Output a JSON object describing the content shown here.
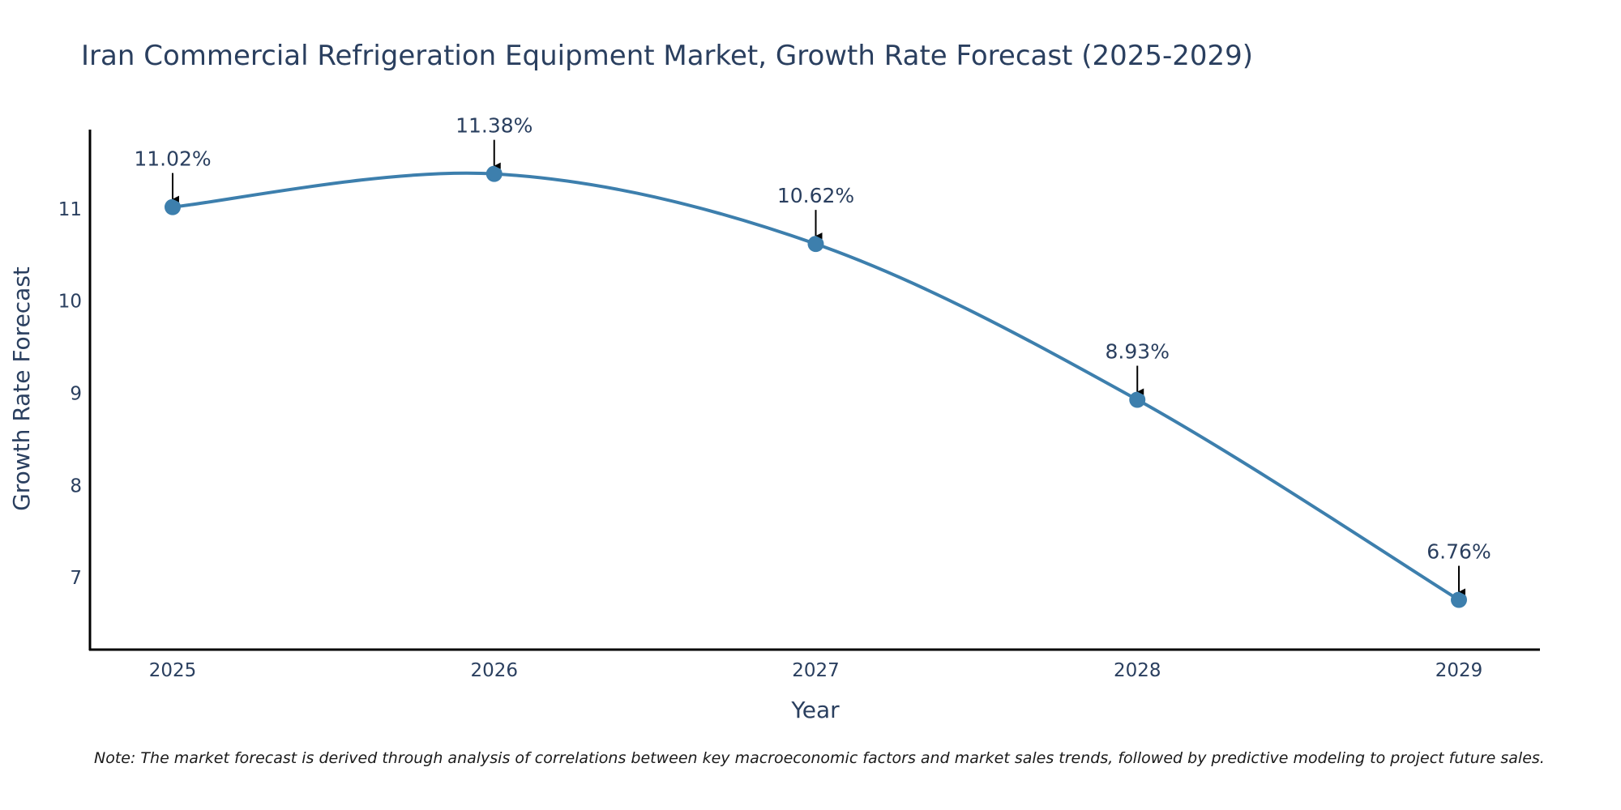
{
  "chart_data": {
    "type": "line",
    "title": "Iran Commercial Refrigeration Equipment Market, Growth Rate Forecast (2025-2029)",
    "xlabel": "Year",
    "ylabel": "Growth Rate Forecast",
    "categories": [
      "2025",
      "2026",
      "2027",
      "2028",
      "2029"
    ],
    "series": [
      {
        "name": "Growth Rate Forecast",
        "values": [
          11.02,
          11.38,
          10.62,
          8.93,
          6.76
        ],
        "labels": [
          "11.02%",
          "11.38%",
          "10.62%",
          "8.93%",
          "6.76%"
        ]
      }
    ],
    "yticks": [
      7,
      8,
      9,
      10,
      11
    ],
    "ylim": [
      6.22,
      11.86
    ],
    "line_shape": "spline",
    "grid": false,
    "line_color": "#3d7fad",
    "annotation_arrow_color": "#000000",
    "note": "Note: The market forecast is derived through analysis of correlations between key macroeconomic factors and market sales trends, followed by predictive modeling to project future sales."
  }
}
